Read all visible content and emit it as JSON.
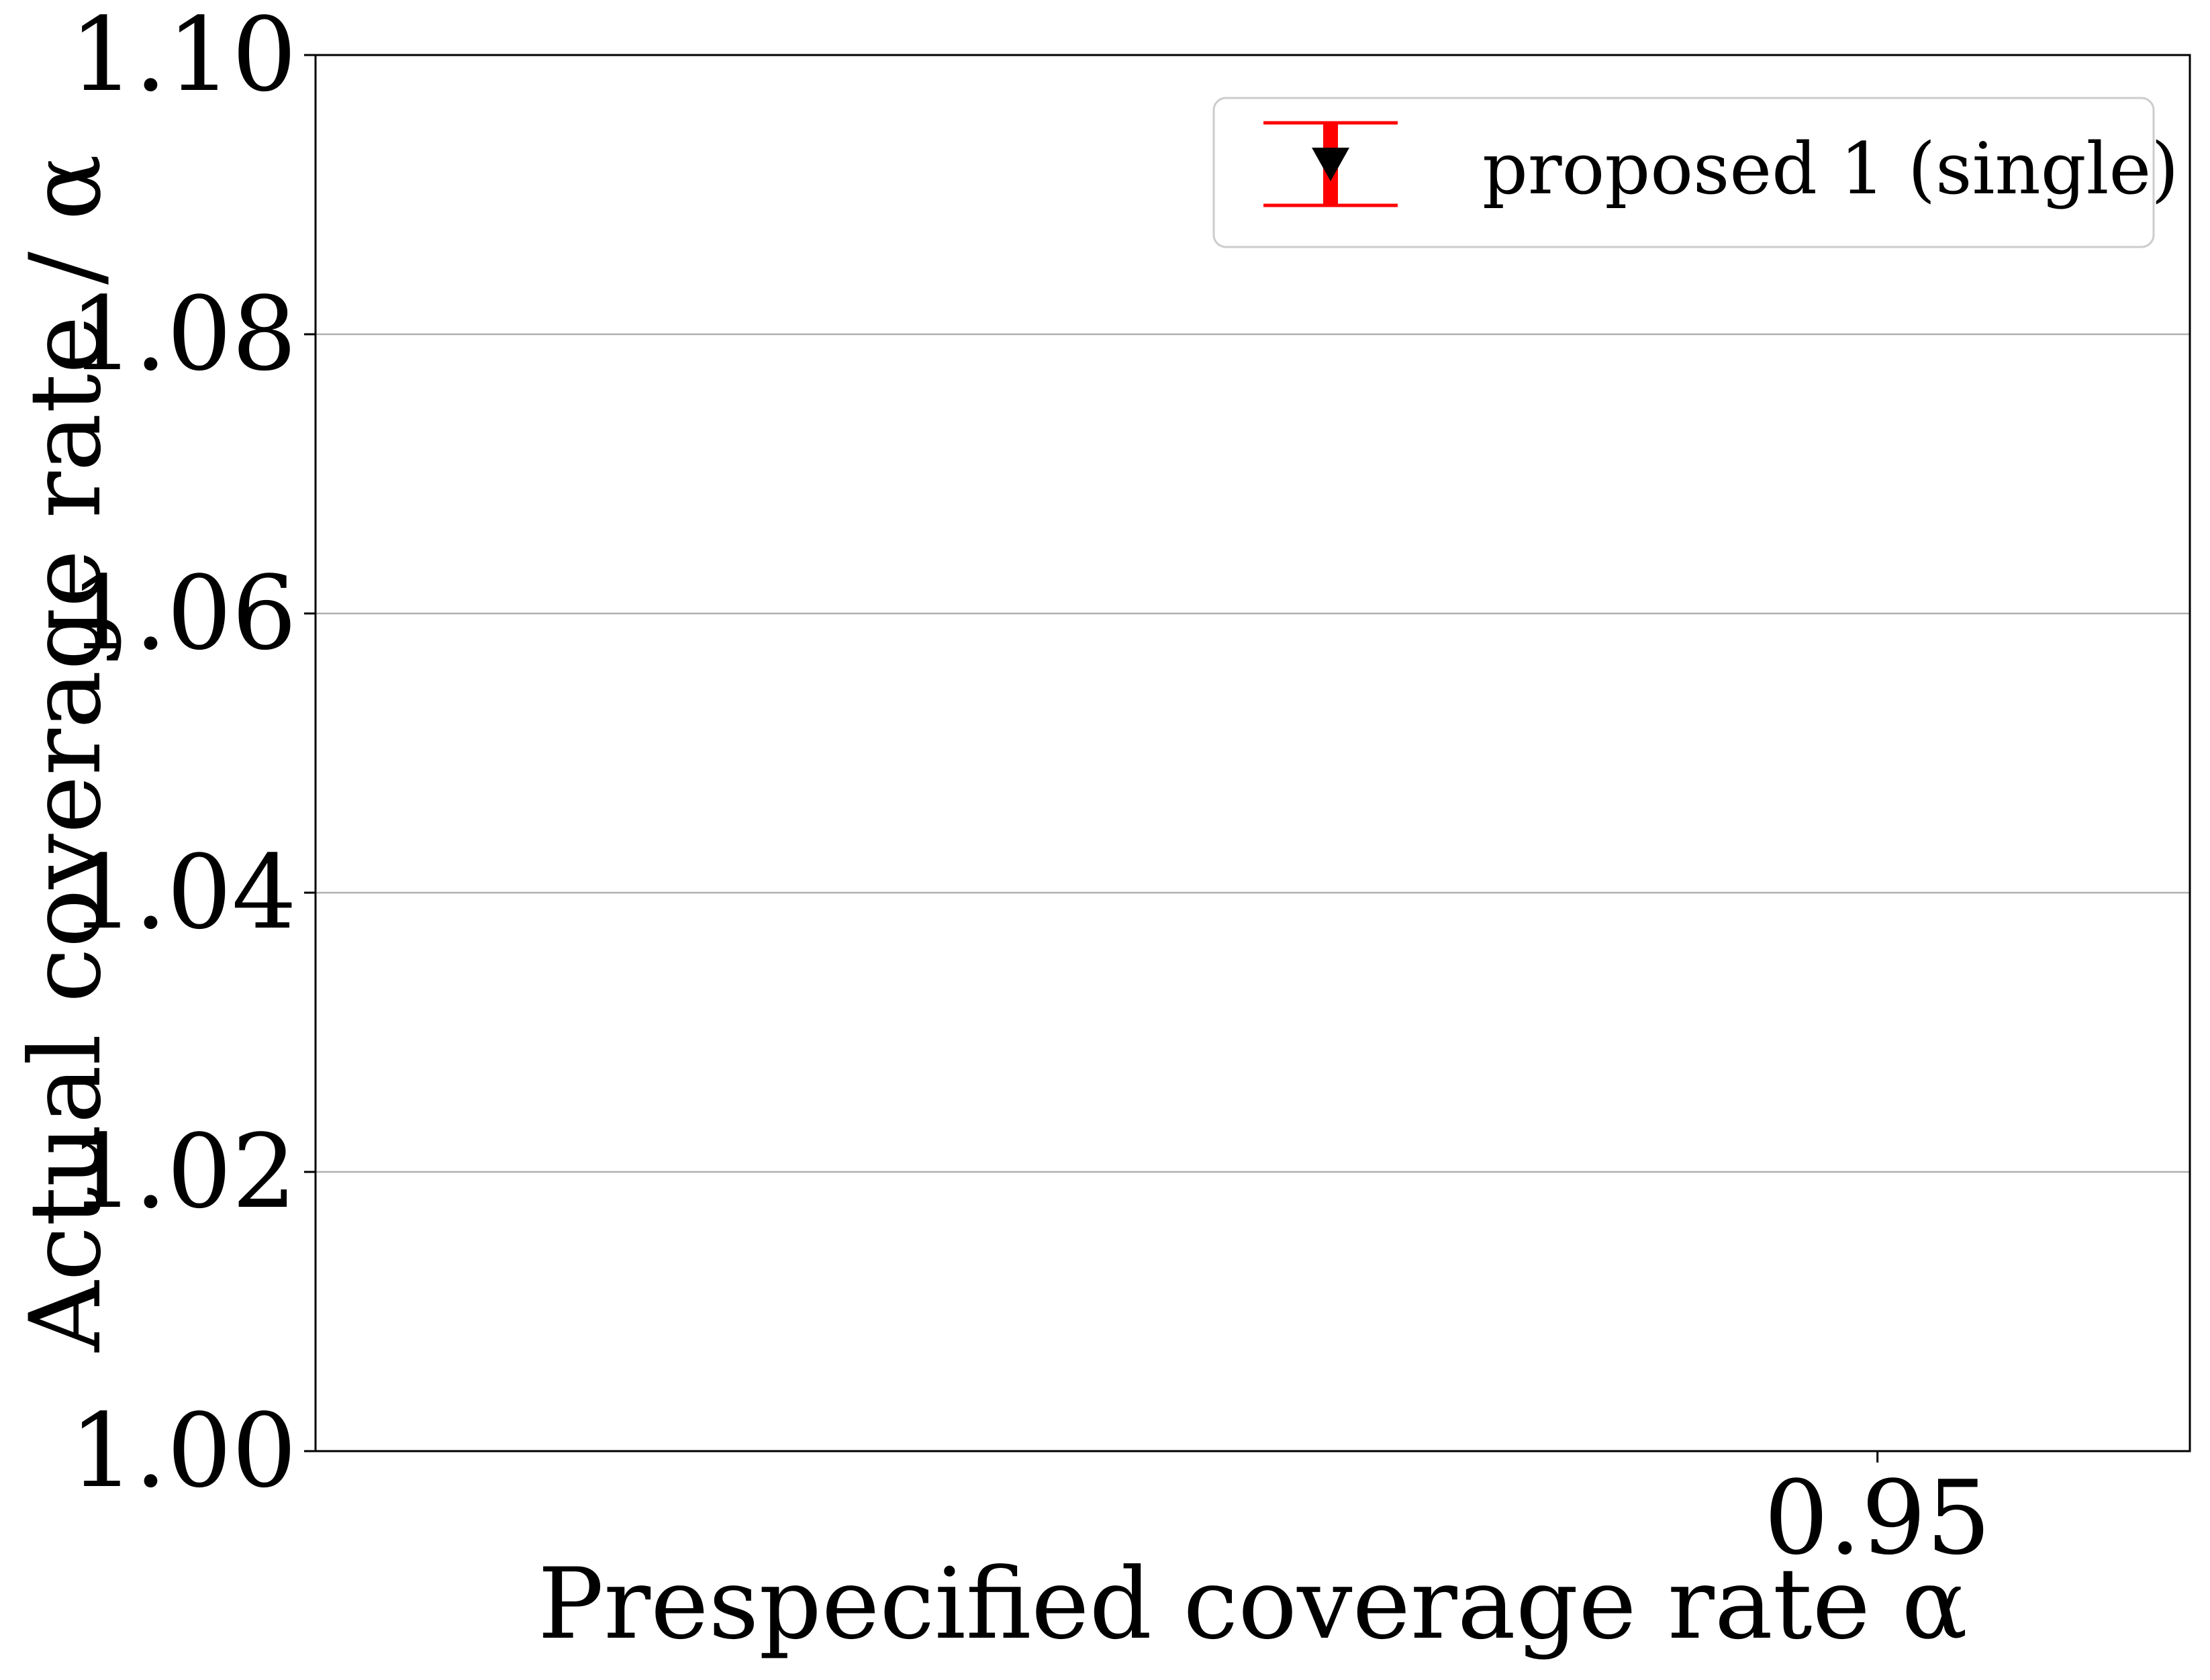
{
  "chart_data": {
    "type": "scatter",
    "title": "",
    "xlabel": "Prespecified coverage rate α",
    "ylabel": "Actual coverage rate / α",
    "xlim": [
      0.9,
      0.96
    ],
    "ylim": [
      1.0,
      1.1
    ],
    "x_ticks": [
      0.95
    ],
    "x_tick_labels": [
      "0.95"
    ],
    "y_ticks": [
      1.0,
      1.02,
      1.04,
      1.06,
      1.08,
      1.1
    ],
    "y_tick_labels": [
      "1.00",
      "1.02",
      "1.04",
      "1.06",
      "1.08",
      "1.10"
    ],
    "grid": "horizontal",
    "legend_position": "top-right",
    "series": [
      {
        "name": "proposed 1 (single)",
        "marker": "triangle-down",
        "marker_color": "#000000",
        "errorbar_color": "#ff0000",
        "points": []
      }
    ]
  }
}
